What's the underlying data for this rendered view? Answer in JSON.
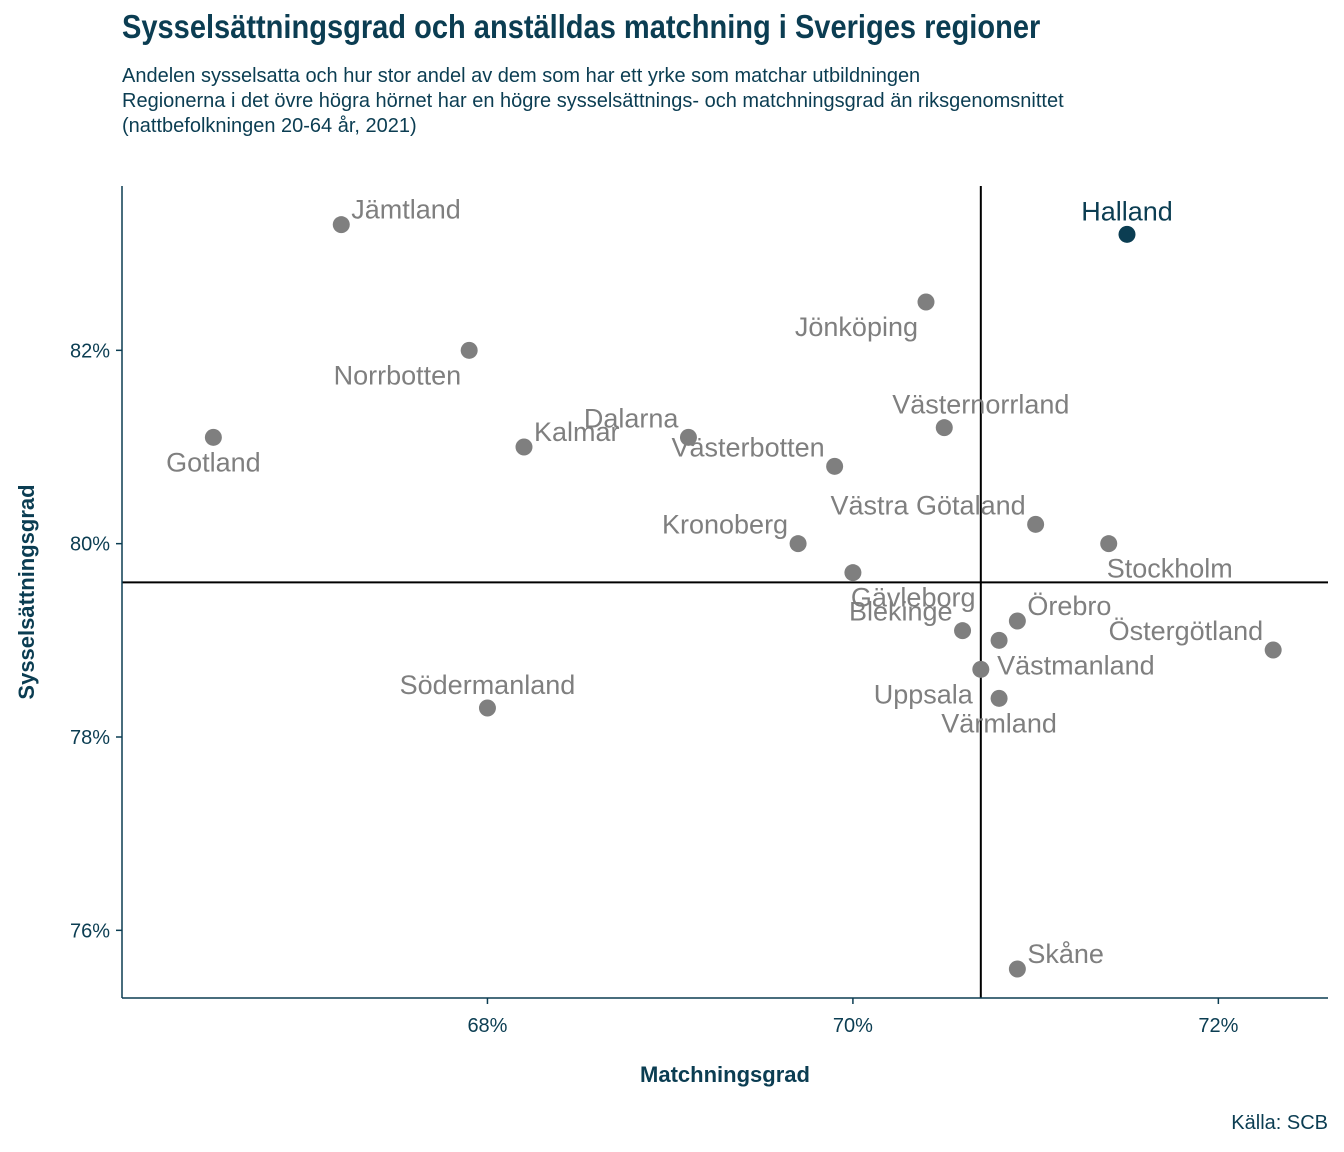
{
  "title": "Sysselsättningsgrad och anställdas matchning i Sveriges regioner",
  "subtitle": [
    "Andelen sysselsatta och hur stor andel av dem som har ett yrke som matchar utbildningen",
    "Regionerna i det övre högra hörnet har en högre sysselsättnings- och matchningsgrad än riksgenomsnittet",
    "(nattbefolkningen 20-64 år, 2021)"
  ],
  "source": "Källa: SCB",
  "colors": {
    "text": "#0b3d52",
    "point": "#7f7f7f",
    "highlight": "#0b3d52",
    "reference": "#000000"
  },
  "chart_data": {
    "type": "scatter",
    "xlabel": "Matchningsgrad",
    "ylabel": "Sysselsättningsgrad",
    "xlim": [
      66.0,
      72.6
    ],
    "ylim": [
      75.3,
      83.7
    ],
    "x_ticks": [
      {
        "value": 68,
        "label": "68%"
      },
      {
        "value": 70,
        "label": "70%"
      },
      {
        "value": 72,
        "label": "72%"
      }
    ],
    "y_ticks": [
      {
        "value": 76,
        "label": "76%"
      },
      {
        "value": 78,
        "label": "78%"
      },
      {
        "value": 80,
        "label": "80%"
      },
      {
        "value": 82,
        "label": "82%"
      }
    ],
    "reference_lines": {
      "x": 70.7,
      "y": 79.6
    },
    "highlight": "Halland",
    "points": [
      {
        "name": "Jämtland",
        "x": 67.2,
        "y": 83.3,
        "label_pos": "upper-right"
      },
      {
        "name": "Halland",
        "x": 71.5,
        "y": 83.2,
        "label_pos": "above"
      },
      {
        "name": "Jönköping",
        "x": 70.4,
        "y": 82.5,
        "label_pos": "below-left"
      },
      {
        "name": "Norrbotten",
        "x": 67.9,
        "y": 82.0,
        "label_pos": "below-left"
      },
      {
        "name": "Västernorrland",
        "x": 70.5,
        "y": 81.2,
        "label_pos": "above-right"
      },
      {
        "name": "Gotland",
        "x": 66.5,
        "y": 81.1,
        "label_pos": "below"
      },
      {
        "name": "Dalarna",
        "x": 69.1,
        "y": 81.1,
        "label_pos": "upper-left"
      },
      {
        "name": "Kalmar",
        "x": 68.2,
        "y": 81.0,
        "label_pos": "upper-right"
      },
      {
        "name": "Västerbotten",
        "x": 69.9,
        "y": 80.8,
        "label_pos": "upper-left"
      },
      {
        "name": "Västra Götaland",
        "x": 71.0,
        "y": 80.2,
        "label_pos": "upper-left"
      },
      {
        "name": "Stockholm",
        "x": 71.4,
        "y": 80.0,
        "label_pos": "below-right"
      },
      {
        "name": "Kronoberg",
        "x": 69.7,
        "y": 80.0,
        "label_pos": "upper-left"
      },
      {
        "name": "Gävleborg",
        "x": 70.0,
        "y": 79.7,
        "label_pos": "below-right"
      },
      {
        "name": "Örebro",
        "x": 70.9,
        "y": 79.2,
        "label_pos": "upper-right"
      },
      {
        "name": "Blekinge",
        "x": 70.6,
        "y": 79.1,
        "label_pos": "upper-left"
      },
      {
        "name": "Östergötland",
        "x": 72.3,
        "y": 78.9,
        "label_pos": "upper-left"
      },
      {
        "name": "Uppsala",
        "x": 70.7,
        "y": 78.7,
        "label_pos": "below-left"
      },
      {
        "name": "Västmanland",
        "x": 70.8,
        "y": 79.0,
        "label_pos": "below-right"
      },
      {
        "name": "Värmland",
        "x": 70.8,
        "y": 78.4,
        "label_pos": "below"
      },
      {
        "name": "Södermanland",
        "x": 68.0,
        "y": 78.3,
        "label_pos": "above"
      },
      {
        "name": "Skåne",
        "x": 70.9,
        "y": 75.6,
        "label_pos": "upper-right"
      }
    ]
  }
}
